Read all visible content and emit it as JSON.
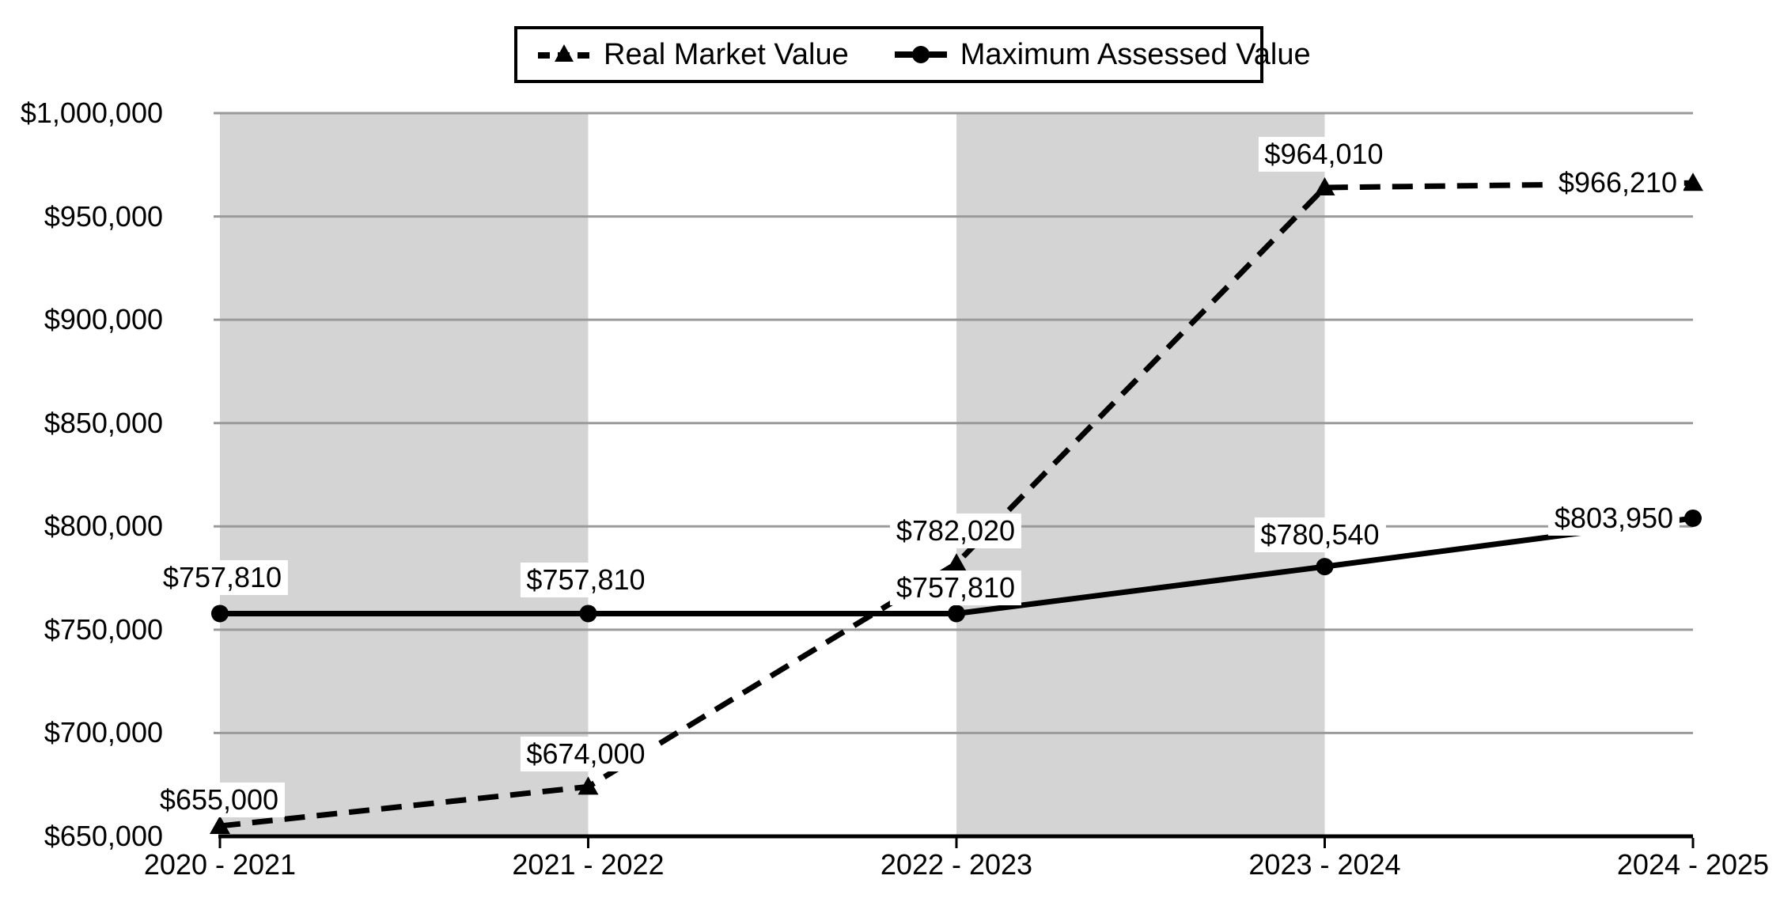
{
  "page": {
    "background": "#ffffff"
  },
  "legend": {
    "position": "top",
    "items": [
      {
        "label": "Real Market Value",
        "line": "dashed",
        "marker": "triangle"
      },
      {
        "label": "Maximum Assessed Value",
        "line": "solid",
        "marker": "circle"
      }
    ]
  },
  "chart_data": {
    "type": "line",
    "title": "",
    "xlabel": "",
    "ylabel": "",
    "categories": [
      "2020 - 2021",
      "2021 - 2022",
      "2022 - 2023",
      "2023 - 2024",
      "2024 - 2025"
    ],
    "series": [
      {
        "name": "Real Market Value",
        "line": "dashed",
        "marker": "triangle",
        "values": [
          655000,
          674000,
          782020,
          964010,
          966210
        ],
        "labels": [
          "$655,000",
          "$674,000",
          "$782,020",
          "$964,010",
          "$966,210"
        ],
        "label_pos": [
          "above",
          "above",
          "above",
          "above",
          "left"
        ],
        "label_dx": [
          -1,
          -3,
          -1,
          -1,
          -95
        ],
        "label_dy": [
          -33,
          -41,
          -41,
          -42,
          0
        ]
      },
      {
        "name": "Maximum Assessed Value",
        "line": "solid",
        "marker": "circle",
        "values": [
          757810,
          757810,
          757810,
          780540,
          803950
        ],
        "labels": [
          "$757,810",
          "$757,810",
          "$757,810",
          "$780,540",
          "$803,950"
        ],
        "label_pos": [
          "above",
          "above",
          "above",
          "above",
          "left"
        ],
        "label_dx": [
          3,
          -3,
          -1,
          -6,
          -100
        ],
        "label_dy": [
          -45,
          -42,
          -32,
          -40,
          0
        ]
      }
    ],
    "ylim": [
      650000,
      1000000
    ],
    "yticks": [
      {
        "value": 1000000,
        "label": "$1,000,000"
      },
      {
        "value": 950000,
        "label": "$950,000"
      },
      {
        "value": 900000,
        "label": "$900,000"
      },
      {
        "value": 850000,
        "label": "$850,000"
      },
      {
        "value": 800000,
        "label": "$800,000"
      },
      {
        "value": 750000,
        "label": "$750,000"
      },
      {
        "value": 700000,
        "label": "$700,000"
      },
      {
        "value": 650000,
        "label": "$650,000"
      }
    ],
    "grid": true,
    "legend_position": "top",
    "plot_bands": [
      [
        0,
        1
      ],
      [
        2,
        3
      ]
    ],
    "colors": {
      "series": "#000000",
      "band": "#d4d4d4",
      "gridline": "#9a9a9a",
      "axis": "#000000",
      "text": "#000000",
      "label_bg": "#ffffff",
      "background": "#ffffff"
    }
  }
}
